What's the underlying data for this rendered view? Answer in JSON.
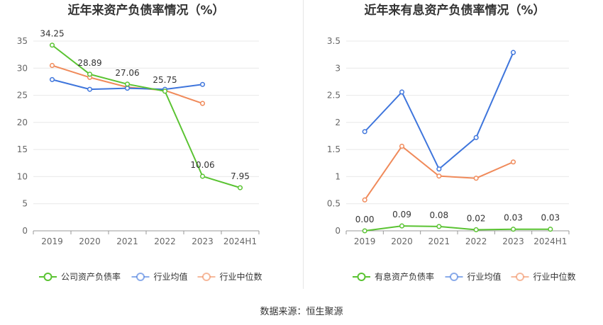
{
  "source_text": "数据来源：恒生聚源",
  "chart_data": [
    {
      "type": "line",
      "title": "近年来资产负债率情况（%）",
      "xlabel": "",
      "ylabel": "",
      "categories": [
        "2019",
        "2020",
        "2021",
        "2022",
        "2023",
        "2024H1"
      ],
      "ylim": [
        0,
        35
      ],
      "yticks": [
        "0",
        "5",
        "10",
        "15",
        "20",
        "25",
        "30",
        "35"
      ],
      "grid": true,
      "legend_position": "bottom",
      "series": [
        {
          "name": "公司资产负债率",
          "color": "#5ac332",
          "values": [
            34.25,
            28.89,
            27.06,
            25.75,
            10.06,
            7.95
          ],
          "labels": [
            "34.25",
            "28.89",
            "27.06",
            "25.75",
            "10.06",
            "7.95"
          ]
        },
        {
          "name": "行业均值",
          "color": "#3e75dc",
          "values": [
            27.9,
            26.1,
            26.3,
            26.1,
            27.0,
            null
          ],
          "labels": []
        },
        {
          "name": "行业中位数",
          "color": "#f08a5a",
          "values": [
            30.5,
            28.3,
            26.5,
            25.9,
            23.5,
            null
          ],
          "labels": []
        }
      ]
    },
    {
      "type": "line",
      "title": "近年来有息资产负债率情况（%）",
      "xlabel": "",
      "ylabel": "",
      "categories": [
        "2019",
        "2020",
        "2021",
        "2022",
        "2023",
        "2024H1"
      ],
      "ylim": [
        0,
        3.5
      ],
      "yticks": [
        "0",
        "0.5",
        "1",
        "1.5",
        "2",
        "2.5",
        "3",
        "3.5"
      ],
      "grid": true,
      "legend_position": "bottom",
      "series": [
        {
          "name": "有息资产负债率",
          "color": "#5ac332",
          "values": [
            0.0,
            0.09,
            0.08,
            0.02,
            0.03,
            0.03
          ],
          "labels": [
            "0.00",
            "0.09",
            "0.08",
            "0.02",
            "0.03",
            "0.03"
          ]
        },
        {
          "name": "行业均值",
          "color": "#3e75dc",
          "values": [
            1.83,
            2.56,
            1.14,
            1.72,
            3.29,
            null
          ],
          "labels": []
        },
        {
          "name": "行业中位数",
          "color": "#f08a5a",
          "values": [
            0.57,
            1.56,
            1.01,
            0.97,
            1.27,
            null
          ],
          "labels": []
        }
      ]
    }
  ]
}
